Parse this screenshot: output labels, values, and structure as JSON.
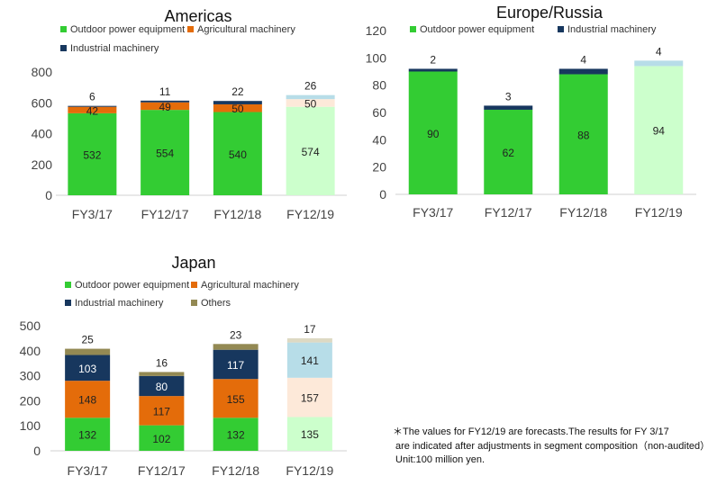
{
  "colors": {
    "outdoor": "#33cc33",
    "agricultural": "#e46c0a",
    "industrial": "#17375e",
    "others": "#938953",
    "outdoor_forecast": "#ccffcc",
    "agricultural_forecast": "#fde9d9",
    "industrial_forecast": "#b7dde8",
    "others_forecast": "#ddd9c3"
  },
  "note": {
    "line1": "＊The values for FY12/19 are forecasts.The results for FY 3/17",
    "line2": "are indicated after adjustments in segment composition（non-audited）.",
    "line3": "Unit:100 million yen."
  },
  "chart_data": [
    {
      "type": "bar",
      "stacked": true,
      "title": "Americas",
      "categories": [
        "FY3/17",
        "FY12/17",
        "FY12/18",
        "FY12/19"
      ],
      "forecast_category": "FY12/19",
      "ylim": [
        0,
        800
      ],
      "yticks": [
        0,
        200,
        400,
        600,
        800
      ],
      "grid": false,
      "legend_position": "top",
      "legend": [
        {
          "name": "Outdoor power equipment",
          "color_key": "outdoor"
        },
        {
          "name": "Agricultural machinery",
          "color_key": "agricultural"
        },
        {
          "name": "Industrial machinery",
          "color_key": "industrial"
        }
      ],
      "series": [
        {
          "name": "Outdoor power equipment",
          "color_key": "outdoor",
          "values": [
            532,
            554,
            540,
            574
          ]
        },
        {
          "name": "Agricultural machinery",
          "color_key": "agricultural",
          "values": [
            42,
            49,
            50,
            50
          ]
        },
        {
          "name": "Industrial machinery",
          "color_key": "industrial",
          "values": [
            6,
            11,
            22,
            26
          ]
        }
      ]
    },
    {
      "type": "bar",
      "stacked": true,
      "title": "Europe/Russia",
      "categories": [
        "FY3/17",
        "FY12/17",
        "FY12/18",
        "FY12/19"
      ],
      "forecast_category": "FY12/19",
      "ylim": [
        0,
        120
      ],
      "yticks": [
        0,
        20,
        40,
        60,
        80,
        100,
        120
      ],
      "grid": false,
      "legend_position": "top",
      "legend": [
        {
          "name": "Outdoor power equipment",
          "color_key": "outdoor"
        },
        {
          "name": "Industrial machinery",
          "color_key": "industrial"
        }
      ],
      "series": [
        {
          "name": "Outdoor power equipment",
          "color_key": "outdoor",
          "values": [
            90,
            62,
            88,
            94
          ]
        },
        {
          "name": "Industrial machinery",
          "color_key": "industrial",
          "values": [
            2,
            3,
            4,
            4
          ]
        }
      ]
    },
    {
      "type": "bar",
      "stacked": true,
      "title": "Japan",
      "categories": [
        "FY3/17",
        "FY12/17",
        "FY12/18",
        "FY12/19"
      ],
      "forecast_category": "FY12/19",
      "ylim": [
        0,
        500
      ],
      "yticks": [
        0,
        100,
        200,
        300,
        400,
        500
      ],
      "grid": false,
      "legend_position": "top",
      "legend": [
        {
          "name": "Outdoor power equipment",
          "color_key": "outdoor"
        },
        {
          "name": "Agricultural machinery",
          "color_key": "agricultural"
        },
        {
          "name": "Industrial machinery",
          "color_key": "industrial"
        },
        {
          "name": "Others",
          "color_key": "others"
        }
      ],
      "series": [
        {
          "name": "Outdoor power equipment",
          "color_key": "outdoor",
          "values": [
            132,
            102,
            132,
            135
          ]
        },
        {
          "name": "Agricultural machinery",
          "color_key": "agricultural",
          "values": [
            148,
            117,
            155,
            157
          ]
        },
        {
          "name": "Industrial machinery",
          "color_key": "industrial",
          "values": [
            103,
            80,
            117,
            141
          ]
        },
        {
          "name": "Others",
          "color_key": "others",
          "values": [
            25,
            16,
            23,
            17
          ]
        }
      ]
    }
  ]
}
